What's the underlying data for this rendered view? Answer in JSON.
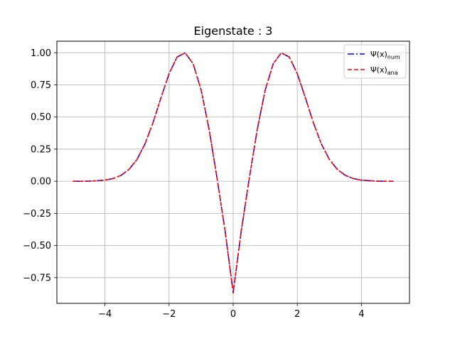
{
  "chart_data": {
    "type": "line",
    "title": "Eigenstate : 3",
    "xlabel": "",
    "ylabel": "",
    "xlim": [
      -5.5,
      5.5
    ],
    "ylim": [
      -0.95,
      1.09
    ],
    "grid": true,
    "legend_position": "top-right",
    "x_ticks": [
      -4,
      -2,
      0,
      2,
      4
    ],
    "x_tick_labels": [
      "−4",
      "−2",
      "0",
      "2",
      "4"
    ],
    "y_ticks": [
      -0.75,
      -0.5,
      -0.25,
      0.0,
      0.25,
      0.5,
      0.75,
      1.0
    ],
    "y_tick_labels": [
      "−0.75",
      "−0.50",
      "−0.25",
      "0.00",
      "0.25",
      "0.50",
      "0.75",
      "1.00"
    ],
    "x": [
      -5.0,
      -4.75,
      -4.5,
      -4.25,
      -4.0,
      -3.75,
      -3.5,
      -3.25,
      -3.0,
      -2.75,
      -2.5,
      -2.25,
      -2.0,
      -1.75,
      -1.5,
      -1.25,
      -1.0,
      -0.75,
      -0.5,
      -0.25,
      0.0,
      0.25,
      0.5,
      0.75,
      1.0,
      1.25,
      1.5,
      1.75,
      2.0,
      2.25,
      2.5,
      2.75,
      3.0,
      3.25,
      3.5,
      3.75,
      4.0,
      4.25,
      4.5,
      4.75,
      5.0
    ],
    "series": [
      {
        "name_main": "Ψ(x)",
        "name_sub": "num",
        "color": "#0000ff",
        "dash": "dashdot",
        "values": [
          0.0,
          0.0,
          0.001,
          0.004,
          0.009,
          0.021,
          0.046,
          0.092,
          0.17,
          0.291,
          0.457,
          0.651,
          0.837,
          0.967,
          0.999,
          0.915,
          0.711,
          0.402,
          0.019,
          -0.39,
          -0.868,
          -0.39,
          0.019,
          0.402,
          0.711,
          0.915,
          0.999,
          0.967,
          0.837,
          0.651,
          0.457,
          0.291,
          0.17,
          0.092,
          0.046,
          0.021,
          0.009,
          0.004,
          0.001,
          0.0,
          0.0
        ]
      },
      {
        "name_main": "Ψ(x)",
        "name_sub": "ana",
        "color": "#ff0000",
        "dash": "dashed",
        "values": [
          0.0,
          0.0,
          0.001,
          0.004,
          0.009,
          0.021,
          0.046,
          0.092,
          0.17,
          0.291,
          0.457,
          0.651,
          0.837,
          0.967,
          0.999,
          0.915,
          0.711,
          0.402,
          0.019,
          -0.39,
          -0.868,
          -0.39,
          0.019,
          0.402,
          0.711,
          0.915,
          0.999,
          0.967,
          0.837,
          0.651,
          0.457,
          0.291,
          0.17,
          0.092,
          0.046,
          0.021,
          0.009,
          0.004,
          0.001,
          0.0,
          0.0
        ]
      }
    ]
  }
}
